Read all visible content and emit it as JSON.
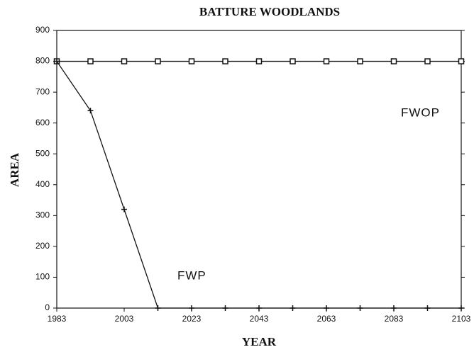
{
  "chart_data": {
    "type": "line",
    "title": "BATTURE WOODLANDS",
    "x_label": "YEAR",
    "y_label": "AREA",
    "x": [
      1983,
      1993,
      2003,
      2013,
      2023,
      2033,
      2043,
      2053,
      2063,
      2073,
      2083,
      2093,
      2103
    ],
    "series": [
      {
        "name": "FWOP",
        "color": "#111111",
        "marker": "square",
        "values": [
          800,
          800,
          800,
          800,
          800,
          800,
          800,
          800,
          800,
          800,
          800,
          800,
          800
        ]
      },
      {
        "name": "FWP",
        "color": "#111111",
        "marker": "plus",
        "values": [
          800,
          640,
          320,
          0,
          0,
          0,
          0,
          0,
          0,
          0,
          0,
          0,
          0
        ]
      }
    ],
    "xlim": [
      1983,
      2103
    ],
    "xticks": [
      1983,
      2003,
      2023,
      2043,
      2063,
      2083,
      2103
    ],
    "ylim": [
      0,
      900
    ],
    "yticks": [
      0,
      100,
      200,
      300,
      400,
      500,
      600,
      700,
      800,
      900
    ],
    "grid": false
  }
}
